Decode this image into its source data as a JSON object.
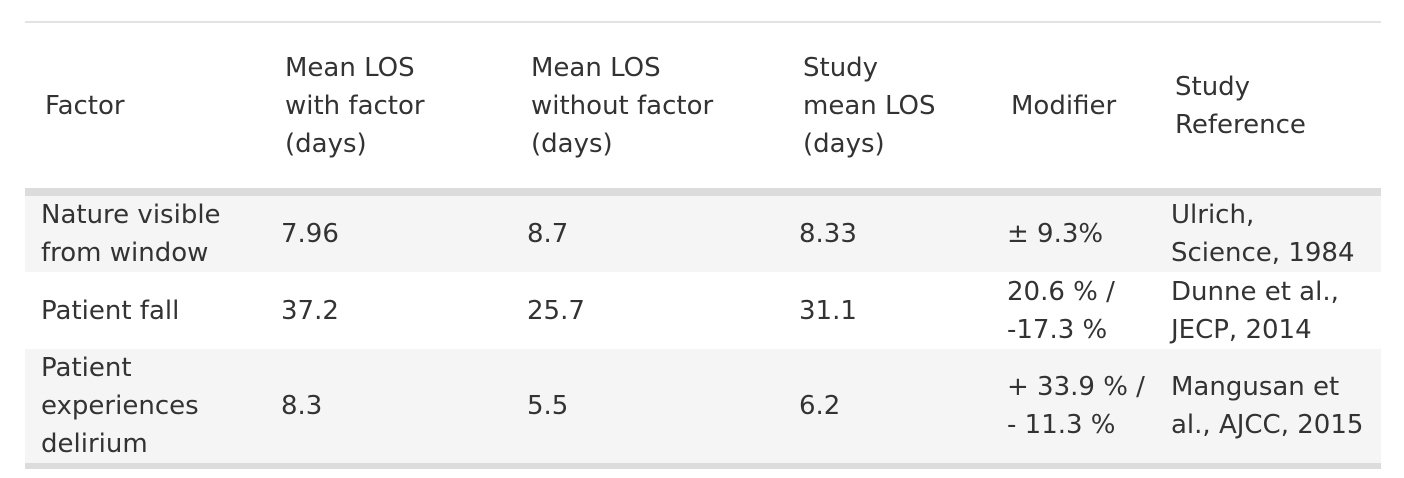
{
  "table": {
    "headers": [
      "Factor",
      "Mean LOS\nwith factor\n(days)",
      "Mean LOS\nwithout factor\n(days)",
      "Study\nmean LOS\n(days)",
      "Modifier",
      "Study\nReference"
    ],
    "rows": [
      {
        "factor": "Nature visible\nfrom window",
        "with": "7.96",
        "without": "8.7",
        "study_mean": "8.33",
        "modifier": "± 9.3%",
        "reference": "Ulrich,\nScience, 1984"
      },
      {
        "factor": "Patient fall",
        "with": "37.2",
        "without": "25.7",
        "study_mean": "31.1",
        "modifier": "20.6 % /\n-17.3 %",
        "reference": "Dunne et al.,\nJECP, 2014"
      },
      {
        "factor": "Patient\nexperiences\ndelirium",
        "with": "8.3",
        "without": "5.5",
        "study_mean": "6.2",
        "modifier": "+ 33.9 % /\n- 11.3 %",
        "reference": "Mangusan et\nal., AJCC, 2015"
      }
    ]
  }
}
